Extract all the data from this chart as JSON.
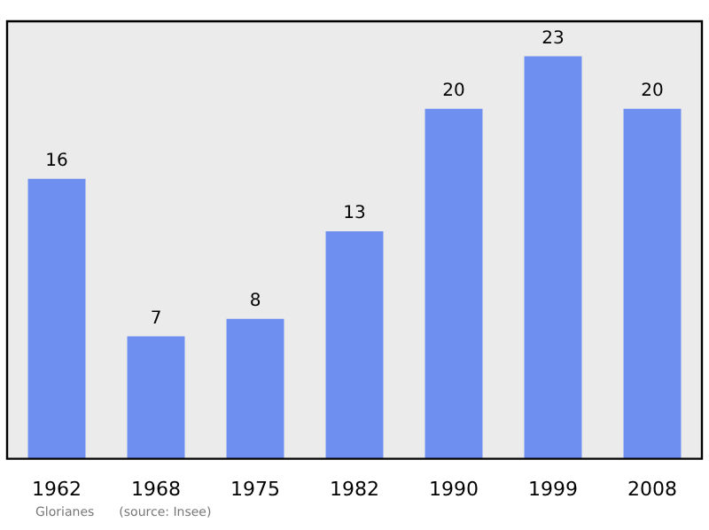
{
  "chart_data": {
    "type": "bar",
    "categories": [
      "1962",
      "1968",
      "1975",
      "1982",
      "1990",
      "1999",
      "2008"
    ],
    "values": [
      16,
      7,
      8,
      13,
      20,
      23,
      20
    ],
    "color": "#6f8ff0",
    "data_labels": true,
    "grid": false,
    "legend": false,
    "annotations": [
      "Glorianes",
      "(source: Insee)"
    ]
  }
}
